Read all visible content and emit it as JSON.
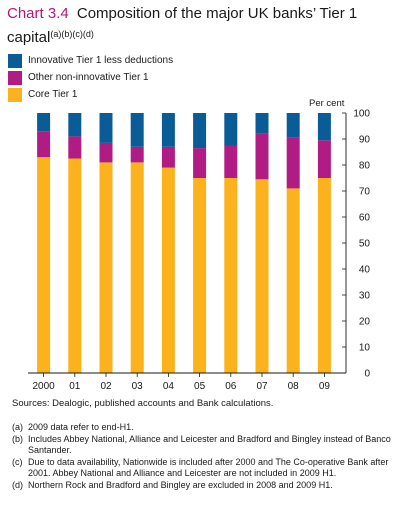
{
  "title": {
    "number": "Chart 3.4",
    "text": "Composition of the major UK banks’ Tier 1 capital",
    "refs": "(a)(b)(c)(d)"
  },
  "colors": {
    "innovative": "#0a5c96",
    "other_non_innovative": "#b01c84",
    "core": "#fbb21c",
    "accent": "#b5177a"
  },
  "chart_data": {
    "type": "bar",
    "stacked": true,
    "categories": [
      "2000",
      "01",
      "02",
      "03",
      "04",
      "05",
      "06",
      "07",
      "08",
      "09"
    ],
    "series": [
      {
        "name": "Core Tier 1",
        "values": [
          83,
          82.5,
          81,
          81,
          79,
          75,
          75,
          74.5,
          71,
          75
        ]
      },
      {
        "name": "Other non-innovative Tier 1",
        "values": [
          10,
          8.5,
          7.5,
          6,
          8,
          11.5,
          12.5,
          17.5,
          19.5,
          14.5
        ]
      },
      {
        "name": "Innovative Tier 1 less deductions",
        "values": [
          7,
          9,
          11.5,
          13,
          13,
          13.5,
          12.5,
          8,
          9.5,
          10.5
        ]
      }
    ],
    "ylabel": "Per cent",
    "ylim": [
      0,
      100
    ],
    "yticks": [
      0,
      10,
      20,
      30,
      40,
      50,
      60,
      70,
      80,
      90,
      100
    ],
    "y_axis_side": "right",
    "grid": false,
    "legend_position": "top-left"
  },
  "legend": [
    {
      "label": "Innovative Tier 1 less deductions",
      "color": "#0a5c96"
    },
    {
      "label": "Other non-innovative Tier 1",
      "color": "#b01c84"
    },
    {
      "label": "Core Tier 1",
      "color": "#fbb21c"
    }
  ],
  "sources": "Sources: Dealogic, published accounts and Bank calculations.",
  "notes": [
    {
      "label": "(a)",
      "text": "2009 data refer to end-H1."
    },
    {
      "label": "(b)",
      "text": "Includes Abbey National, Alliance and Leicester and Bradford and Bingley instead of Banco Santander."
    },
    {
      "label": "(c)",
      "text": "Due to data availability, Nationwide is included after 2000 and The Co-operative Bank after 2001.  Abbey National and Alliance and Leicester are not included in 2009 H1."
    },
    {
      "label": "(d)",
      "text": "Northern Rock and Bradford and Bingley are excluded in 2008 and 2009 H1."
    }
  ]
}
